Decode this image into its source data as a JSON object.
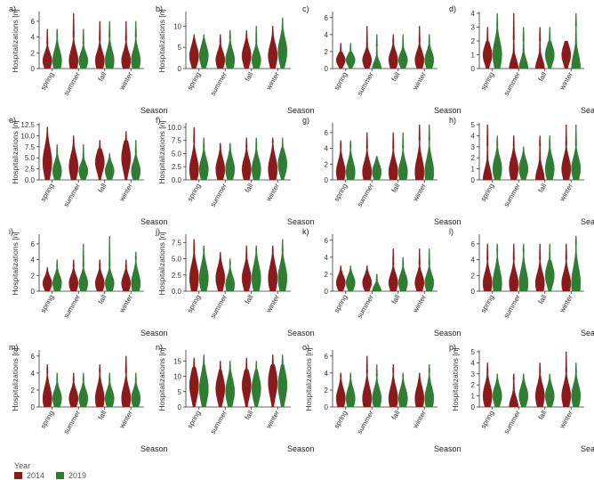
{
  "colors": {
    "series_2014": "#8b1a1a",
    "series_2019": "#2e7d32",
    "axis": "#333333"
  },
  "legend": {
    "title": "Year",
    "items": [
      "2014",
      "2019"
    ]
  },
  "chart_data": [
    {
      "panel": "a)",
      "type": "violin",
      "ylabel": "Hospitalizations [n]",
      "xlabel": "Season",
      "categories": [
        "spring",
        "summer",
        "fall",
        "winter"
      ],
      "yticks": [
        0,
        2,
        4,
        6
      ],
      "ylim": [
        0,
        7
      ],
      "series": [
        {
          "name": "2014",
          "max": [
            5,
            7,
            6,
            6
          ],
          "body": [
            3,
            4,
            3.5,
            3.5
          ],
          "mode": [
            1,
            1,
            1,
            1
          ]
        },
        {
          "name": "2019",
          "max": [
            5,
            5,
            6,
            6
          ],
          "body": [
            4,
            3,
            4,
            4
          ],
          "mode": [
            1,
            1,
            1,
            1
          ]
        }
      ]
    },
    {
      "panel": "b)",
      "type": "violin",
      "ylabel": "Hospitalizations [n]",
      "xlabel": "Season",
      "categories": [
        "spring",
        "summer",
        "fall",
        "winter"
      ],
      "yticks": [
        0,
        5,
        10
      ],
      "ylim": [
        0,
        13
      ],
      "series": [
        {
          "name": "2014",
          "max": [
            8,
            8,
            9,
            10
          ],
          "body": [
            7,
            6,
            7,
            8
          ],
          "mode": [
            3,
            2,
            3,
            3
          ]
        },
        {
          "name": "2019",
          "max": [
            8,
            9,
            10,
            12
          ],
          "body": [
            7,
            7,
            6,
            9
          ],
          "mode": [
            3,
            2,
            2,
            4
          ]
        }
      ]
    },
    {
      "panel": "c)",
      "type": "violin",
      "ylabel": "",
      "xlabel": "Season",
      "categories": [
        "spring",
        "summer",
        "fall",
        "winter"
      ],
      "yticks": [
        0,
        2,
        4,
        6
      ],
      "ylim": [
        0,
        6.5
      ],
      "series": [
        {
          "name": "2014",
          "max": [
            3,
            5,
            4,
            5
          ],
          "body": [
            2,
            2.5,
            3,
            3
          ],
          "mode": [
            1,
            1,
            1,
            1
          ]
        },
        {
          "name": "2019",
          "max": [
            3,
            4,
            4,
            4
          ],
          "body": [
            2,
            2.5,
            2.5,
            3
          ],
          "mode": [
            1,
            0,
            1,
            1
          ]
        }
      ]
    },
    {
      "panel": "d)",
      "type": "violin",
      "ylabel": "",
      "xlabel": "Season",
      "categories": [
        "spring",
        "summer",
        "fall",
        "winter"
      ],
      "yticks": [
        0,
        1,
        2,
        3,
        4
      ],
      "ylim": [
        0,
        4
      ],
      "series": [
        {
          "name": "2014",
          "max": [
            3,
            4,
            3,
            2
          ],
          "body": [
            2,
            2,
            2,
            2
          ],
          "mode": [
            1,
            0,
            0,
            1
          ]
        },
        {
          "name": "2019",
          "max": [
            4,
            3,
            3,
            4
          ],
          "body": [
            3,
            2,
            2,
            3
          ],
          "mode": [
            1,
            0,
            1,
            0
          ]
        }
      ]
    },
    {
      "panel": "e)",
      "type": "violin",
      "ylabel": "Hospitalizations [n]",
      "xlabel": "Season",
      "categories": [
        "spring",
        "summer",
        "fall",
        "winter"
      ],
      "yticks": [
        "0.0",
        "2.5",
        "5.0",
        "7.5",
        "10.0",
        "12.5"
      ],
      "ylim": [
        0,
        12.5
      ],
      "series": [
        {
          "name": "2014",
          "max": [
            12,
            10,
            9,
            11
          ],
          "body": [
            10,
            8,
            7,
            9
          ],
          "mode": [
            4,
            3,
            4,
            5
          ]
        },
        {
          "name": "2019",
          "max": [
            8,
            8,
            6,
            9
          ],
          "body": [
            6,
            5,
            5,
            6
          ],
          "mode": [
            2,
            2,
            2,
            2
          ]
        }
      ]
    },
    {
      "panel": "f)",
      "type": "violin",
      "ylabel": "Hospitalizations [n]",
      "xlabel": "Season",
      "categories": [
        "spring",
        "summer",
        "fall",
        "winter"
      ],
      "yticks": [
        "0.0",
        "2.5",
        "5.0",
        "7.5",
        "10.0"
      ],
      "ylim": [
        0,
        10.5
      ],
      "series": [
        {
          "name": "2014",
          "max": [
            10,
            7,
            8,
            8
          ],
          "body": [
            7,
            6,
            6,
            7
          ],
          "mode": [
            2,
            2,
            2,
            2
          ]
        },
        {
          "name": "2019",
          "max": [
            8,
            7,
            8,
            8
          ],
          "body": [
            6,
            6,
            6,
            6
          ],
          "mode": [
            2,
            2,
            2,
            3
          ]
        }
      ]
    },
    {
      "panel": "g)",
      "type": "violin",
      "ylabel": "",
      "xlabel": "Season",
      "categories": [
        "spring",
        "summer",
        "fall",
        "winter"
      ],
      "yticks": [
        0,
        2,
        4,
        6
      ],
      "ylim": [
        0,
        7
      ],
      "series": [
        {
          "name": "2014",
          "max": [
            5,
            6,
            6,
            7
          ],
          "body": [
            4,
            4,
            4,
            5
          ],
          "mode": [
            1,
            1,
            1,
            1
          ]
        },
        {
          "name": "2019",
          "max": [
            5,
            3,
            6,
            7
          ],
          "body": [
            4,
            3,
            4,
            5
          ],
          "mode": [
            1,
            1,
            1,
            1
          ]
        }
      ]
    },
    {
      "panel": "h)",
      "type": "violin",
      "ylabel": "",
      "xlabel": "Season",
      "categories": [
        "spring",
        "summer",
        "fall",
        "winter"
      ],
      "yticks": [
        0,
        1,
        2,
        3,
        4,
        5
      ],
      "ylim": [
        0,
        5
      ],
      "series": [
        {
          "name": "2014",
          "max": [
            5,
            4,
            4,
            5
          ],
          "body": [
            3,
            3,
            3,
            3
          ],
          "mode": [
            0,
            1,
            0,
            1
          ]
        },
        {
          "name": "2019",
          "max": [
            4,
            3,
            4,
            5
          ],
          "body": [
            3,
            2.5,
            3,
            3
          ],
          "mode": [
            1,
            1,
            1,
            1
          ]
        }
      ]
    },
    {
      "panel": "i)",
      "type": "violin",
      "ylabel": "Hospitalizations [n]",
      "xlabel": "Season",
      "categories": [
        "spring",
        "summer",
        "fall",
        "winter"
      ],
      "yticks": [
        0,
        2,
        4,
        6
      ],
      "ylim": [
        0,
        7
      ],
      "series": [
        {
          "name": "2014",
          "max": [
            3,
            4,
            4,
            4
          ],
          "body": [
            2.5,
            3,
            3,
            3
          ],
          "mode": [
            1,
            1,
            1,
            1
          ]
        },
        {
          "name": "2019",
          "max": [
            4,
            6,
            7,
            5
          ],
          "body": [
            3,
            3,
            3,
            4
          ],
          "mode": [
            1,
            1,
            1,
            1
          ]
        }
      ]
    },
    {
      "panel": "j)",
      "type": "violin",
      "ylabel": "Hospitalizations [n]",
      "xlabel": "Season",
      "categories": [
        "spring",
        "summer",
        "fall",
        "winter"
      ],
      "yticks": [
        "0.0",
        "2.5",
        "5.0",
        "7.5"
      ],
      "ylim": [
        0,
        8.5
      ],
      "series": [
        {
          "name": "2014",
          "max": [
            8,
            6,
            7,
            7
          ],
          "body": [
            6,
            5,
            5,
            6
          ],
          "mode": [
            2,
            2,
            2,
            2
          ]
        },
        {
          "name": "2019",
          "max": [
            7,
            5,
            7,
            8
          ],
          "body": [
            6,
            4,
            6,
            6
          ],
          "mode": [
            2,
            1,
            2,
            2
          ]
        }
      ]
    },
    {
      "panel": "k)",
      "type": "violin",
      "ylabel": "",
      "xlabel": "Season",
      "categories": [
        "spring",
        "summer",
        "fall",
        "winter"
      ],
      "yticks": [
        0,
        2,
        4,
        6
      ],
      "ylim": [
        0,
        6.5
      ],
      "series": [
        {
          "name": "2014",
          "max": [
            3,
            3,
            5,
            5
          ],
          "body": [
            2.5,
            2.5,
            3,
            3
          ],
          "mode": [
            1,
            1,
            1,
            1
          ]
        },
        {
          "name": "2019",
          "max": [
            3,
            2,
            4,
            5
          ],
          "body": [
            2.5,
            2,
            3,
            3
          ],
          "mode": [
            1,
            0,
            1,
            1
          ]
        }
      ]
    },
    {
      "panel": "l)",
      "type": "violin",
      "ylabel": "",
      "xlabel": "Season",
      "categories": [
        "spring",
        "summer",
        "fall",
        "winter"
      ],
      "yticks": [
        0,
        2,
        4,
        6
      ],
      "ylim": [
        0,
        7
      ],
      "series": [
        {
          "name": "2014",
          "max": [
            6,
            6,
            6,
            6
          ],
          "body": [
            4,
            4,
            4,
            4
          ],
          "mode": [
            1,
            1,
            1,
            1
          ]
        },
        {
          "name": "2019",
          "max": [
            6,
            6,
            6,
            7
          ],
          "body": [
            5,
            5,
            4,
            6
          ],
          "mode": [
            1,
            1,
            2,
            1
          ]
        }
      ]
    },
    {
      "panel": "m)",
      "type": "violin",
      "ylabel": "Hospitalizations [n]",
      "xlabel": "Season",
      "categories": [
        "spring",
        "summer",
        "fall",
        "winter"
      ],
      "yticks": [
        0,
        2,
        4,
        6
      ],
      "ylim": [
        0,
        6.5
      ],
      "series": [
        {
          "name": "2014",
          "max": [
            5,
            4,
            5,
            6
          ],
          "body": [
            4,
            3,
            4,
            4
          ],
          "mode": [
            1,
            1,
            1,
            1
          ]
        },
        {
          "name": "2019",
          "max": [
            4,
            4,
            4,
            4
          ],
          "body": [
            3,
            3,
            3,
            3
          ],
          "mode": [
            1,
            1,
            1,
            1
          ]
        }
      ]
    },
    {
      "panel": "n)",
      "type": "violin",
      "ylabel": "Hospitalizations [n]",
      "xlabel": "Season",
      "categories": [
        "spring",
        "summer",
        "fall",
        "winter"
      ],
      "yticks": [
        0,
        5,
        10,
        15
      ],
      "ylim": [
        0,
        18
      ],
      "series": [
        {
          "name": "2014",
          "max": [
            16,
            15,
            16,
            17
          ],
          "body": [
            13,
            12,
            12,
            14
          ],
          "mode": [
            7,
            6,
            7,
            8
          ]
        },
        {
          "name": "2019",
          "max": [
            17,
            15,
            15,
            17
          ],
          "body": [
            14,
            12,
            12,
            14
          ],
          "mode": [
            6,
            5,
            6,
            7
          ]
        }
      ]
    },
    {
      "panel": "o)",
      "type": "violin",
      "ylabel": "Hospitalizations [n]",
      "xlabel": "Season",
      "categories": [
        "spring",
        "summer",
        "fall",
        "winter"
      ],
      "yticks": [
        0,
        2,
        4,
        6
      ],
      "ylim": [
        0,
        6.5
      ],
      "series": [
        {
          "name": "2014",
          "max": [
            4,
            6,
            5,
            4
          ],
          "body": [
            3.5,
            4,
            4,
            4
          ],
          "mode": [
            1,
            1,
            1,
            1
          ]
        },
        {
          "name": "2019",
          "max": [
            4,
            5,
            4,
            5
          ],
          "body": [
            3.5,
            3.5,
            3.5,
            4
          ],
          "mode": [
            1,
            1,
            1,
            1
          ]
        }
      ]
    },
    {
      "panel": "p)",
      "type": "violin",
      "ylabel": "Hospitalizations [n]",
      "xlabel": "Season",
      "categories": [
        "spring",
        "summer",
        "fall",
        "winter"
      ],
      "yticks": [
        0,
        1,
        2,
        3,
        4,
        5
      ],
      "ylim": [
        0,
        5
      ],
      "series": [
        {
          "name": "2014",
          "max": [
            4,
            3,
            4,
            5
          ],
          "body": [
            3,
            2.5,
            3,
            3
          ],
          "mode": [
            1,
            0,
            1,
            1
          ]
        },
        {
          "name": "2019",
          "max": [
            3,
            3,
            3,
            4
          ],
          "body": [
            2.5,
            2.5,
            2.5,
            3
          ],
          "mode": [
            1,
            1,
            1,
            1
          ]
        }
      ]
    }
  ]
}
